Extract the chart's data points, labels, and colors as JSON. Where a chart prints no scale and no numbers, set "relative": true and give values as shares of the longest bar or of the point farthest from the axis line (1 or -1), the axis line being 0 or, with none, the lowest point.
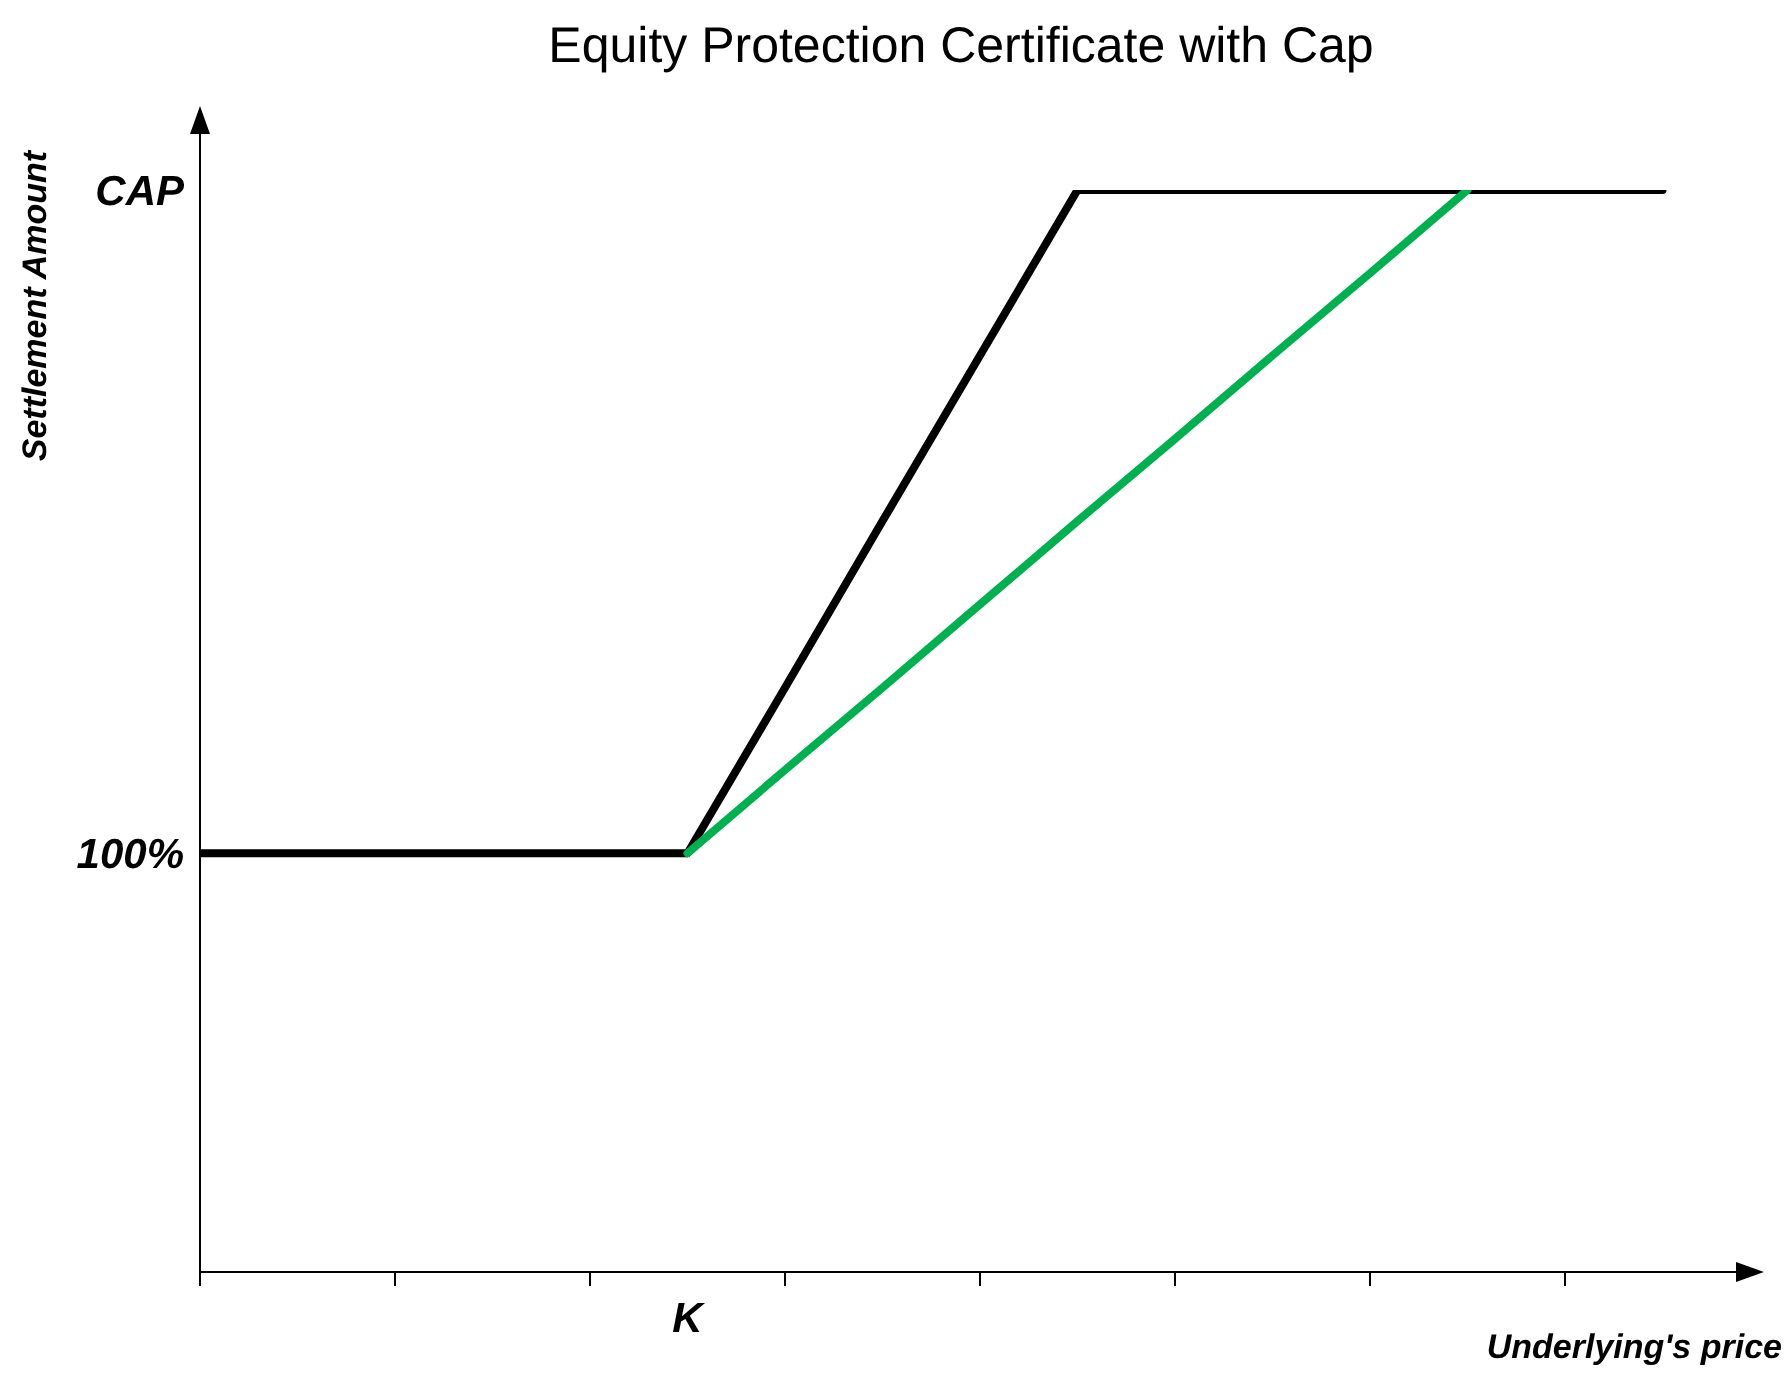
{
  "chart_data": {
    "type": "line",
    "title": "Equity Protection Certificate with Cap",
    "xlabel": "Underlying's price",
    "ylabel": "Settlement Amount",
    "relative": true,
    "categories": [
      null,
      null,
      null,
      null,
      null,
      null,
      null,
      null,
      null,
      null,
      null,
      null,
      null,
      null,
      null,
      null
    ],
    "annotations": [
      "CAP",
      "100%",
      "K"
    ],
    "grid": false,
    "legend": false,
    "marker": "none",
    "line_style": "solid",
    "series": [
      {
        "color": "#000000",
        "values": [
          0.387,
          0.387,
          0.387,
          0.387,
          0.387,
          0.387,
          0.54,
          0.694,
          0.847,
          1,
          1,
          1,
          1,
          1,
          1,
          1
        ]
      },
      {
        "color": "#00b050",
        "values": [
          null,
          null,
          null,
          null,
          null,
          0.387,
          0.464,
          0.54,
          0.617,
          0.694,
          0.77,
          0.847,
          0.923,
          1,
          null,
          null
        ]
      }
    ]
  }
}
